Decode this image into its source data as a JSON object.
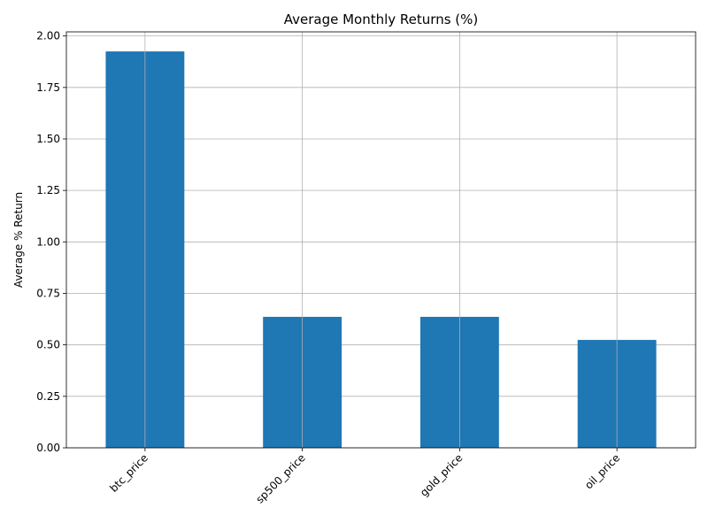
{
  "chart_data": {
    "type": "bar",
    "title": "Average Monthly Returns (%)",
    "xlabel": "",
    "ylabel": "Average % Return",
    "categories": [
      "btc_price",
      "sp500_price",
      "gold_price",
      "oil_price"
    ],
    "values": [
      1.925,
      0.636,
      0.636,
      0.524
    ],
    "ylim": [
      0,
      2.02
    ],
    "yticks": [
      0.0,
      0.25,
      0.5,
      0.75,
      1.0,
      1.25,
      1.5,
      1.75,
      2.0
    ],
    "ytick_labels": [
      "0.00",
      "0.25",
      "0.50",
      "0.75",
      "1.00",
      "1.25",
      "1.50",
      "1.75",
      "2.00"
    ],
    "grid": true,
    "bar_color": "#1f77b4",
    "x_tick_rotation": 45
  }
}
